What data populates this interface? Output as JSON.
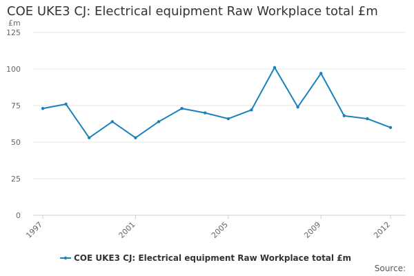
{
  "chart_data": {
    "type": "line",
    "title": "COE UKE3 CJ: Electrical equipment Raw Workplace total £m",
    "y_unit": "£m",
    "xlabel": "",
    "ylabel": "",
    "x": [
      1997,
      1998,
      1999,
      2000,
      2001,
      2002,
      2003,
      2004,
      2005,
      2006,
      2007,
      2008,
      2009,
      2010,
      2011,
      2012
    ],
    "x_tick_labels": [
      "1997",
      "2001",
      "2005",
      "2009",
      "2012"
    ],
    "x_tick_values": [
      1997,
      2001,
      2005,
      2009,
      2012
    ],
    "xlim": [
      1997,
      2012
    ],
    "ylim": [
      0,
      125
    ],
    "y_ticks": [
      0,
      25,
      50,
      75,
      100,
      125
    ],
    "grid": true,
    "legend_position": "bottom",
    "series": [
      {
        "name": "COE UKE3 CJ: Electrical equipment Raw Workplace total £m",
        "color": "#1a80bb",
        "values": [
          73,
          76,
          53,
          64,
          53,
          64,
          73,
          70,
          66,
          72,
          101,
          74,
          97,
          68,
          66,
          60
        ]
      }
    ],
    "source_label": "Source:"
  }
}
